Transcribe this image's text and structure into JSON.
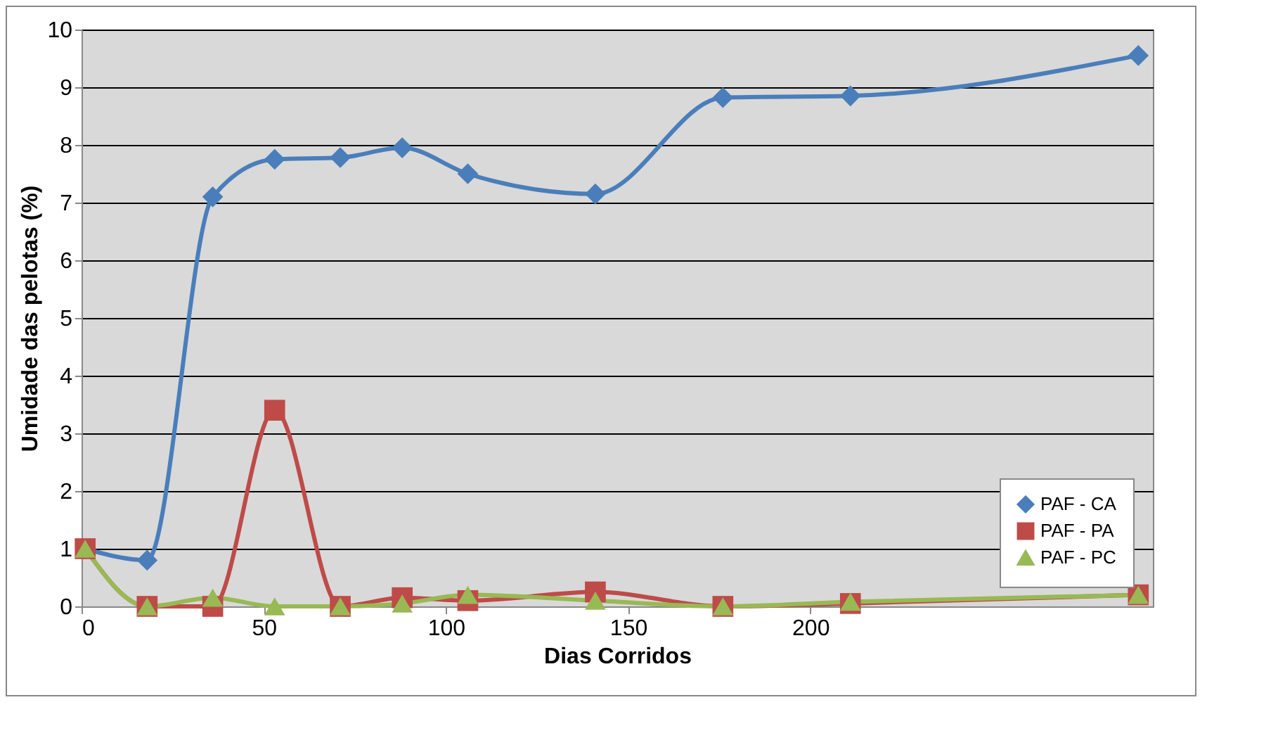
{
  "chart_data": {
    "type": "line",
    "xlabel": "Dias Corridos",
    "ylabel": "Umidade das pelotas (%)",
    "x": [
      1,
      18,
      36,
      53,
      71,
      88,
      106,
      141,
      176,
      211,
      290
    ],
    "series": [
      {
        "name": "PAF - CA",
        "color": "#4a7ebb",
        "marker": "diamond",
        "values": [
          1.0,
          0.8,
          7.1,
          7.75,
          7.78,
          7.95,
          7.5,
          7.15,
          8.82,
          8.85,
          9.55
        ]
      },
      {
        "name": "PAF - PA",
        "color": "#be4b48",
        "marker": "square",
        "values": [
          1.0,
          0.0,
          0.0,
          3.4,
          0.0,
          0.15,
          0.1,
          0.25,
          0.0,
          0.05,
          0.2
        ]
      },
      {
        "name": "PAF - PC",
        "color": "#98b954",
        "marker": "triangle",
        "values": [
          1.0,
          0.0,
          0.15,
          0.0,
          0.0,
          0.05,
          0.2,
          0.1,
          0.0,
          0.08,
          0.2
        ]
      }
    ],
    "xlim": [
      0,
      294
    ],
    "xticks": [
      0,
      50,
      100,
      150,
      200
    ],
    "ylim": [
      0,
      10
    ],
    "yticks": [
      0,
      1,
      2,
      3,
      4,
      5,
      6,
      7,
      8,
      9,
      10
    ],
    "grid": "y",
    "legend": "bottom right"
  }
}
